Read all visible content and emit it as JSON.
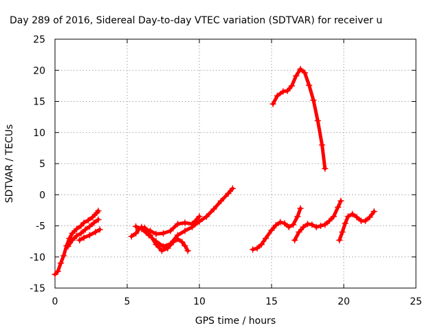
{
  "chart_data": {
    "type": "scatter",
    "title": "Day 289 of 2016, Sidereal Day-to-day VTEC variation (SDTVAR) for receiver u",
    "xlabel": "GPS time / hours",
    "ylabel": "SDTVAR / TECUs",
    "xlim": [
      0,
      25
    ],
    "ylim": [
      -15,
      25
    ],
    "xticks": [
      0,
      5,
      10,
      15,
      20,
      25
    ],
    "yticks": [
      -15,
      -10,
      -5,
      0,
      5,
      10,
      15,
      20,
      25
    ],
    "grid": true,
    "marker": "+",
    "color": "#ff0000",
    "series": [
      {
        "points": [
          [
            0.0,
            -12.8
          ],
          [
            0.2,
            -12.3
          ],
          [
            0.4,
            -11.0
          ],
          [
            0.6,
            -9.8
          ],
          [
            0.8,
            -8.2
          ],
          [
            1.0,
            -7.0
          ],
          [
            1.2,
            -6.2
          ],
          [
            1.5,
            -5.5
          ],
          [
            1.8,
            -5.0
          ],
          [
            2.0,
            -4.5
          ],
          [
            2.3,
            -4.1
          ],
          [
            2.6,
            -3.6
          ],
          [
            2.9,
            -2.9
          ],
          [
            3.0,
            -2.6
          ]
        ]
      },
      {
        "points": [
          [
            0.9,
            -8.3
          ],
          [
            1.2,
            -7.3
          ],
          [
            1.5,
            -6.6
          ],
          [
            1.8,
            -6.2
          ],
          [
            2.1,
            -5.6
          ],
          [
            2.4,
            -5.1
          ],
          [
            2.7,
            -4.5
          ],
          [
            3.0,
            -4.0
          ]
        ]
      },
      {
        "points": [
          [
            1.7,
            -7.3
          ],
          [
            2.0,
            -6.9
          ],
          [
            2.4,
            -6.5
          ],
          [
            2.8,
            -6.0
          ],
          [
            3.1,
            -5.6
          ]
        ]
      },
      {
        "points": [
          [
            5.3,
            -6.7
          ],
          [
            5.6,
            -6.2
          ],
          [
            5.8,
            -5.6
          ],
          [
            6.0,
            -5.2
          ],
          [
            6.3,
            -5.6
          ],
          [
            6.6,
            -5.8
          ],
          [
            7.0,
            -6.3
          ],
          [
            7.5,
            -6.2
          ],
          [
            8.0,
            -5.8
          ],
          [
            8.5,
            -4.7
          ],
          [
            9.0,
            -4.5
          ],
          [
            9.5,
            -4.7
          ],
          [
            10.0,
            -3.5
          ]
        ]
      },
      {
        "points": [
          [
            5.6,
            -5.1
          ],
          [
            6.0,
            -5.5
          ],
          [
            6.5,
            -6.5
          ],
          [
            7.0,
            -7.5
          ],
          [
            7.5,
            -8.3
          ],
          [
            8.0,
            -7.9
          ],
          [
            8.5,
            -6.5
          ],
          [
            9.0,
            -5.8
          ],
          [
            9.5,
            -5.2
          ],
          [
            10.0,
            -4.3
          ],
          [
            10.5,
            -3.5
          ],
          [
            11.0,
            -2.3
          ],
          [
            11.5,
            -1.0
          ],
          [
            12.0,
            0.2
          ],
          [
            12.3,
            1.0
          ]
        ]
      },
      {
        "points": [
          [
            6.2,
            -5.3
          ],
          [
            6.6,
            -6.5
          ],
          [
            7.0,
            -8.0
          ],
          [
            7.4,
            -9.0
          ],
          [
            7.8,
            -8.6
          ],
          [
            8.2,
            -7.6
          ],
          [
            8.5,
            -7.1
          ],
          [
            8.8,
            -7.6
          ],
          [
            9.0,
            -8.2
          ],
          [
            9.2,
            -9.0
          ]
        ]
      },
      {
        "points": [
          [
            13.7,
            -8.8
          ],
          [
            14.0,
            -8.6
          ],
          [
            14.3,
            -8.0
          ],
          [
            14.6,
            -7.0
          ],
          [
            15.0,
            -5.7
          ],
          [
            15.3,
            -4.9
          ],
          [
            15.6,
            -4.4
          ],
          [
            15.9,
            -4.6
          ],
          [
            16.2,
            -5.2
          ],
          [
            16.5,
            -4.8
          ],
          [
            16.8,
            -3.5
          ],
          [
            17.0,
            -2.2
          ]
        ]
      },
      {
        "points": [
          [
            16.6,
            -7.3
          ],
          [
            16.9,
            -6.0
          ],
          [
            17.2,
            -5.2
          ],
          [
            17.5,
            -4.7
          ],
          [
            17.8,
            -4.8
          ],
          [
            18.1,
            -5.2
          ],
          [
            18.4,
            -5.0
          ],
          [
            18.7,
            -4.8
          ],
          [
            19.0,
            -4.2
          ],
          [
            19.3,
            -3.5
          ],
          [
            19.6,
            -2.0
          ],
          [
            19.8,
            -1.0
          ]
        ]
      },
      {
        "points": [
          [
            19.7,
            -7.3
          ],
          [
            19.9,
            -6.0
          ],
          [
            20.1,
            -4.6
          ],
          [
            20.3,
            -3.5
          ],
          [
            20.6,
            -3.1
          ],
          [
            20.9,
            -3.6
          ],
          [
            21.2,
            -4.2
          ],
          [
            21.5,
            -4.2
          ],
          [
            21.8,
            -3.6
          ],
          [
            22.1,
            -2.7
          ]
        ]
      },
      {
        "points": [
          [
            15.1,
            14.6
          ],
          [
            15.4,
            15.9
          ],
          [
            15.8,
            16.6
          ],
          [
            16.1,
            16.7
          ],
          [
            16.4,
            17.5
          ],
          [
            16.7,
            19.1
          ],
          [
            17.0,
            20.2
          ],
          [
            17.3,
            19.6
          ],
          [
            17.6,
            17.6
          ],
          [
            17.9,
            15.2
          ],
          [
            18.2,
            11.9
          ],
          [
            18.5,
            8.0
          ],
          [
            18.7,
            4.2
          ]
        ]
      }
    ]
  }
}
